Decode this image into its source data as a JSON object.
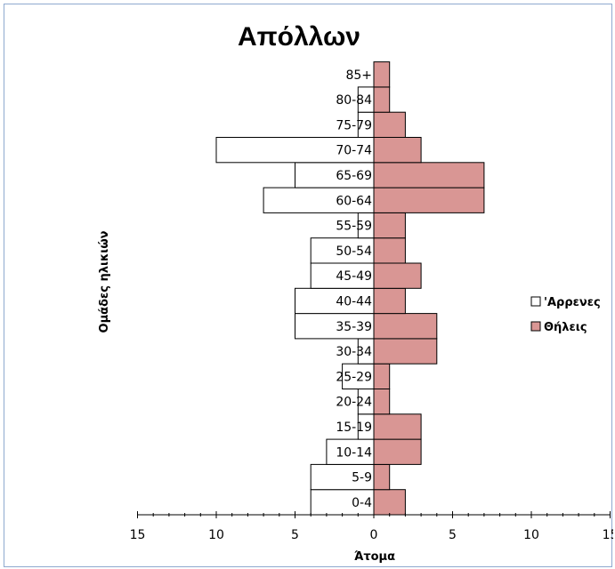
{
  "chart_data": {
    "type": "bar",
    "orientation": "horizontal",
    "title": "Απόλλων",
    "xlabel": "Άτομα",
    "ylabel": "Ομάδες ηλικιών",
    "categories": [
      "0-4",
      "5-9",
      "10-14",
      "15-19",
      "20-24",
      "25-29",
      "30-34",
      "35-39",
      "40-44",
      "45-49",
      "50-54",
      "55-59",
      "60-64",
      "65-69",
      "70-74",
      "75-79",
      "80-84",
      "85+"
    ],
    "series": [
      {
        "name": "'Αρρενες",
        "values": [
          4,
          4,
          3,
          1,
          1,
          2,
          1,
          5,
          5,
          4,
          4,
          1,
          7,
          5,
          10,
          1,
          1,
          0
        ],
        "color": "#ffffff"
      },
      {
        "name": "Θήλεις",
        "values": [
          2,
          1,
          3,
          3,
          1,
          1,
          4,
          4,
          2,
          3,
          2,
          2,
          7,
          7,
          3,
          2,
          1,
          1
        ],
        "color": "#d99694"
      }
    ],
    "xlim": [
      -15,
      15
    ],
    "xticks": [
      15,
      10,
      5,
      0,
      5,
      10,
      15
    ],
    "grid": false,
    "legend": "right"
  }
}
